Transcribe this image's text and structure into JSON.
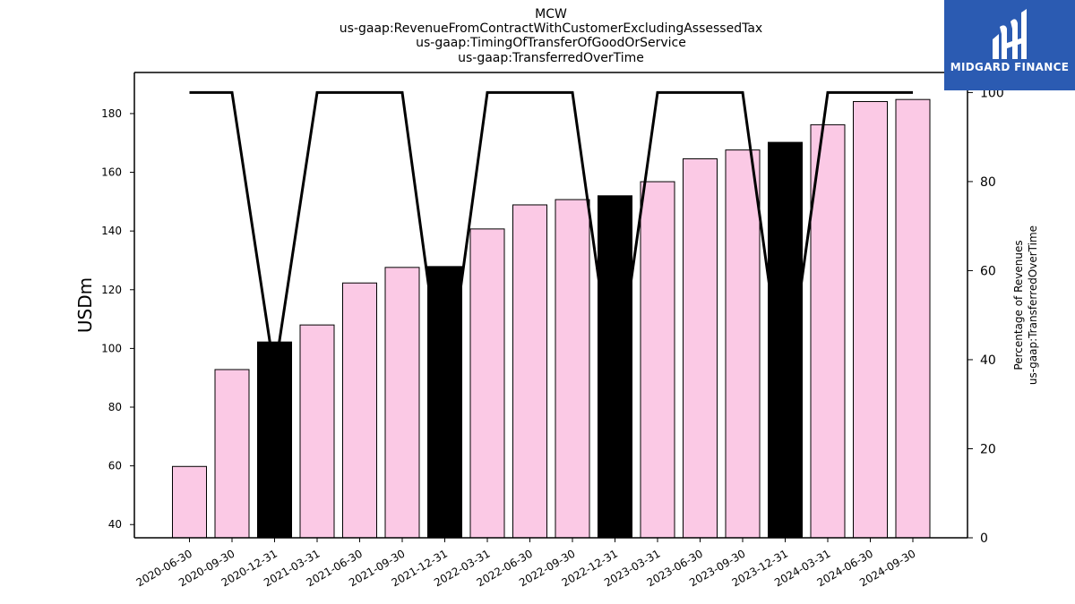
{
  "chart_data": {
    "type": "bar",
    "title_lines": [
      "MCW",
      "us-gaap:RevenueFromContractWithCustomerExcludingAssessedTax",
      "us-gaap:TimingOfTransferOfGoodOrService",
      "us-gaap:TransferredOverTime"
    ],
    "categories": [
      "2020-06-30",
      "2020-09-30",
      "2020-12-31",
      "2021-03-31",
      "2021-06-30",
      "2021-09-30",
      "2021-12-31",
      "2022-03-31",
      "2022-06-30",
      "2022-09-30",
      "2022-12-31",
      "2023-03-31",
      "2023-06-30",
      "2023-09-30",
      "2023-12-31",
      "2024-03-31",
      "2024-06-30",
      "2024-09-30"
    ],
    "values": [
      59.8,
      92.8,
      102.2,
      108.0,
      122.3,
      127.6,
      127.9,
      140.7,
      148.9,
      150.7,
      152.0,
      156.8,
      164.6,
      167.6,
      170.2,
      176.2,
      184.1,
      184.8
    ],
    "bar_kinds": [
      "q",
      "q",
      "fy",
      "q",
      "q",
      "q",
      "fy",
      "q",
      "q",
      "q",
      "fy",
      "q",
      "q",
      "q",
      "fy",
      "q",
      "q",
      "q"
    ],
    "colors": {
      "quarter_bar": "#fbc9e5",
      "annual_bar": "#000000",
      "line": "#000000",
      "logo_bg": "#2b5bb2"
    },
    "ylabel": "USDm",
    "ylim": [
      35.5,
      194
    ],
    "yticks": [
      40,
      60,
      80,
      100,
      120,
      140,
      160,
      180
    ],
    "y2label_lines": [
      "Percentage of Revenues",
      "us-gaap:TransferredOverTime"
    ],
    "y2lim": [
      0,
      104.5
    ],
    "y2ticks": [
      0,
      20,
      40,
      60,
      80,
      100
    ],
    "line_series": {
      "values": [
        100,
        100,
        37,
        100,
        100,
        100,
        30,
        100,
        100,
        100,
        32,
        100,
        100,
        100,
        31,
        100,
        100,
        100
      ]
    },
    "grid": false
  },
  "logo": {
    "text": "MIDGARD FINANCE"
  }
}
